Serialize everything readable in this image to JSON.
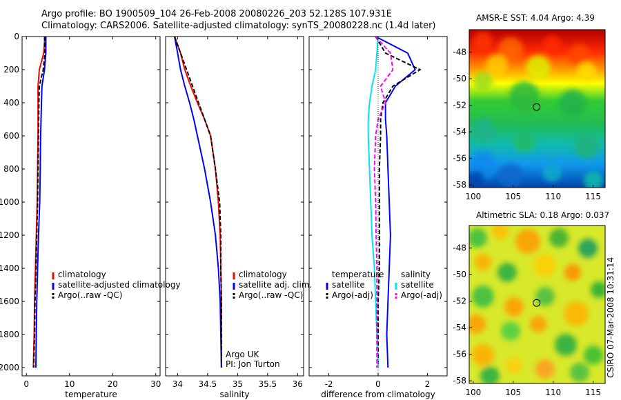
{
  "header": {
    "line1": "Argo profile: BO 1900509_104 26-Feb-2008 20080226_203 52.128S 107.931E",
    "line2": "Climatology: CARS2006. Satellite-adjusted climatology: synTS_20080228.nc (1.4d later)"
  },
  "credit": "CSIRO 07-Mar-2008 10:31:14",
  "colors": {
    "climatology": "#ff0000",
    "satellite": "#0000ff",
    "argo": "#000000",
    "temp_diff": "#0000ff",
    "sal_diff_satellite": "#00e5ee",
    "sal_diff_argo": "#ff00ff"
  },
  "chart_data": [
    {
      "type": "line",
      "xlabel": "temperature",
      "xlim": [
        -1,
        31
      ],
      "xticks": [
        "0",
        "10",
        "20",
        "30"
      ],
      "ylim": [
        2050,
        0
      ],
      "yticks": [
        "0",
        "200",
        "400",
        "600",
        "800",
        "1000",
        "1200",
        "1400",
        "1600",
        "1800",
        "2000"
      ],
      "legend": [
        "climatology",
        "satellite-adjusted climatology",
        "Argo(..raw -QC)"
      ],
      "legend_position": "lower-center",
      "y": [
        0,
        100,
        200,
        300,
        400,
        600,
        800,
        1000,
        1200,
        1400,
        1600,
        1800,
        2000
      ],
      "series": [
        {
          "name": "climatology",
          "values": [
            4.3,
            4.0,
            3.0,
            2.7,
            2.7,
            2.7,
            2.6,
            2.5,
            2.3,
            2.1,
            1.9,
            1.8,
            1.6
          ]
        },
        {
          "name": "satellite-adjusted climatology",
          "values": [
            4.5,
            4.5,
            4.2,
            3.6,
            3.5,
            3.3,
            3.2,
            3.1,
            2.8,
            2.6,
            2.4,
            2.3,
            2.2
          ]
        },
        {
          "name": "Argo(..raw -QC)",
          "values": [
            4.2,
            4.3,
            3.9,
            3.0,
            2.9,
            2.8,
            2.7,
            2.6,
            2.4,
            2.2,
            2.0,
            1.9,
            1.7
          ]
        }
      ]
    },
    {
      "type": "line",
      "xlabel": "salinity",
      "xlim": [
        33.8,
        36.1
      ],
      "xticks": [
        "34",
        "34.5",
        "35",
        "35.5",
        "36"
      ],
      "ylim": [
        2050,
        0
      ],
      "legend": [
        "climatology",
        "satellite adj. clim.",
        "Argo(..raw -QC)"
      ],
      "legend_position": "lower-right",
      "annotation": [
        "Argo UK",
        "PI: Jon Turton"
      ],
      "y": [
        0,
        100,
        200,
        300,
        400,
        500,
        600,
        800,
        1000,
        1200,
        1400,
        1600,
        1800,
        2000
      ],
      "series": [
        {
          "name": "climatology",
          "values": [
            33.95,
            34.05,
            34.12,
            34.22,
            34.33,
            34.45,
            34.55,
            34.63,
            34.68,
            34.71,
            34.72,
            34.73,
            34.73,
            34.73
          ]
        },
        {
          "name": "satellite adj. clim.",
          "values": [
            33.95,
            34.0,
            34.05,
            34.12,
            34.2,
            34.27,
            34.33,
            34.45,
            34.55,
            34.63,
            34.68,
            34.71,
            34.72,
            34.73
          ]
        },
        {
          "name": "Argo(..raw -QC)",
          "values": [
            33.95,
            34.05,
            34.15,
            34.25,
            34.35,
            34.45,
            34.55,
            34.63,
            34.7,
            34.72,
            34.72,
            34.73,
            34.73,
            34.73
          ]
        }
      ]
    },
    {
      "type": "line",
      "xlabel": "difference from climatology",
      "xlim": [
        -2.8,
        2.8
      ],
      "xticks": [
        "-2",
        "0",
        "2"
      ],
      "ylim": [
        2050,
        0
      ],
      "legend": [
        "temperature",
        "satellite",
        "Argo(-adj)",
        "salinity",
        "satellite",
        "Argo(-adj)"
      ],
      "legend_position": "lower-center",
      "y": [
        0,
        100,
        200,
        300,
        400,
        500,
        600,
        800,
        1000,
        1200,
        1400,
        1600,
        1800,
        2000
      ],
      "series": [
        {
          "name": "temperature satellite",
          "values": [
            -0.1,
            1.2,
            1.5,
            0.7,
            0.3,
            0.3,
            0.35,
            0.4,
            0.45,
            0.5,
            0.45,
            0.4,
            0.35,
            0.4
          ]
        },
        {
          "name": "temperature Argo(-adj)",
          "values": [
            -0.1,
            0.3,
            1.7,
            0.6,
            0.2,
            0.1,
            0.1,
            0.05,
            0.05,
            0.05,
            0.05,
            0.0,
            0.0,
            0.0
          ]
        },
        {
          "name": "salinity satellite",
          "values": [
            0.0,
            -0.05,
            -0.1,
            -0.25,
            -0.35,
            -0.4,
            -0.4,
            -0.35,
            -0.3,
            -0.25,
            -0.15,
            -0.1,
            -0.05,
            0.0
          ]
        },
        {
          "name": "salinity Argo(-adj)",
          "values": [
            -0.1,
            0.5,
            0.6,
            0.1,
            0.3,
            0.0,
            -0.1,
            -0.15,
            -0.1,
            -0.08,
            -0.05,
            -0.05,
            -0.05,
            -0.05
          ]
        }
      ]
    },
    {
      "type": "heatmap",
      "title": "AMSR-E SST: 4.04 Argo: 4.39",
      "xlim": [
        99.5,
        116.5
      ],
      "ylim": [
        -58.2,
        -46.3
      ],
      "xticks": [
        "100",
        "105",
        "110",
        "115"
      ],
      "yticks": [
        "-48",
        "-50",
        "-52",
        "-54",
        "-56",
        "-58"
      ],
      "marker": {
        "lon": 107.93,
        "lat": -52.13
      }
    },
    {
      "type": "heatmap",
      "title": "Altimetric SLA: 0.18 Argo: 0.037",
      "xlim": [
        99.5,
        116.5
      ],
      "ylim": [
        -58.2,
        -46.3
      ],
      "xticks": [
        "100",
        "105",
        "110",
        "115"
      ],
      "yticks": [
        "-48",
        "-50",
        "-52",
        "-54",
        "-56",
        "-58"
      ],
      "marker": {
        "lon": 107.93,
        "lat": -52.13
      }
    }
  ]
}
